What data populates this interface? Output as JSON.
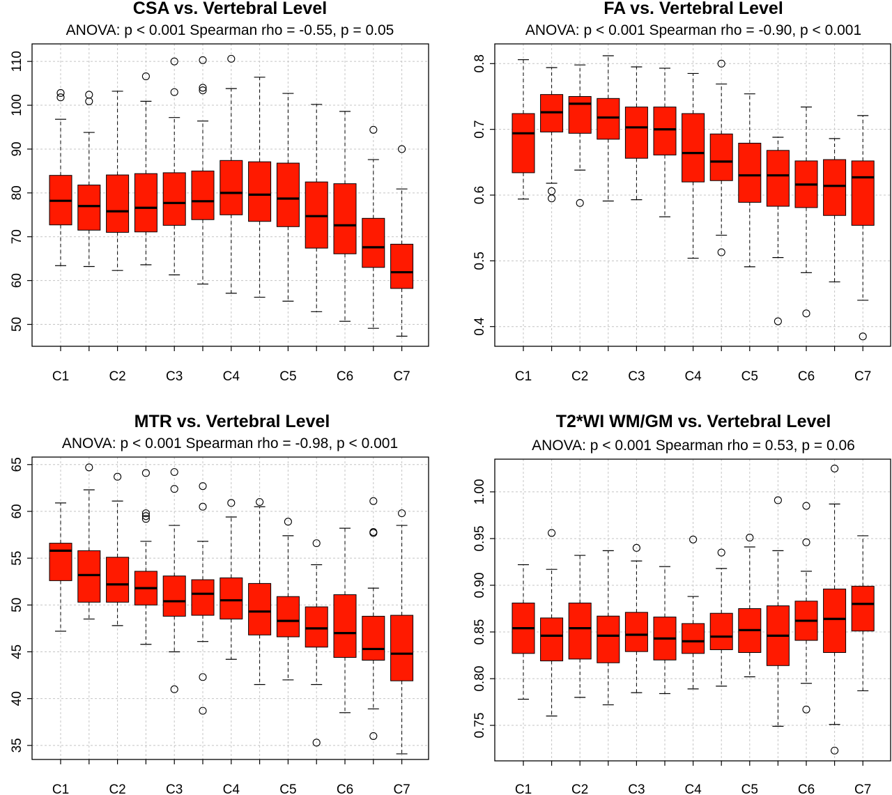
{
  "chart_data": [
    {
      "type": "box",
      "title": "CSA vs. Vertebral Level",
      "subtitle": "ANOVA: p < 0.001    Spearman rho = -0.55, p = 0.05",
      "xlabel": "",
      "ylabel": "",
      "ylim": [
        45,
        114
      ],
      "yticks": [
        50,
        60,
        70,
        80,
        90,
        100,
        110
      ],
      "ytick_labels": [
        "50",
        "60",
        "70",
        "80",
        "90",
        "100",
        "110"
      ],
      "grid": true,
      "box_color": "#ff1a00",
      "xtick_labels": [
        "C1",
        "",
        "C2",
        "",
        "C3",
        "",
        "C4",
        "",
        "C5",
        "",
        "C6",
        "",
        "C7"
      ],
      "boxes": [
        {
          "q1": 72.7,
          "median": 78.2,
          "q3": 84.0,
          "whisker_low": 63.4,
          "whisker_high": 96.8,
          "outliers": [
            101.8,
            102.8
          ]
        },
        {
          "q1": 71.5,
          "median": 77.0,
          "q3": 81.8,
          "whisker_low": 63.2,
          "whisker_high": 93.8,
          "outliers": [
            100.9,
            102.4
          ]
        },
        {
          "q1": 71.0,
          "median": 75.8,
          "q3": 84.1,
          "whisker_low": 62.3,
          "whisker_high": 103.2,
          "outliers": []
        },
        {
          "q1": 71.1,
          "median": 76.6,
          "q3": 84.4,
          "whisker_low": 63.6,
          "whisker_high": 100.9,
          "outliers": [
            106.6
          ]
        },
        {
          "q1": 72.6,
          "median": 77.7,
          "q3": 84.6,
          "whisker_low": 61.3,
          "whisker_high": 97.2,
          "outliers": [
            103.0,
            110.0
          ]
        },
        {
          "q1": 73.9,
          "median": 78.1,
          "q3": 85.0,
          "whisker_low": 59.2,
          "whisker_high": 96.4,
          "outliers": [
            103.4,
            104.0,
            110.3
          ]
        },
        {
          "q1": 75.0,
          "median": 80.0,
          "q3": 87.4,
          "whisker_low": 57.1,
          "whisker_high": 103.8,
          "outliers": [
            110.6
          ]
        },
        {
          "q1": 73.5,
          "median": 79.6,
          "q3": 87.1,
          "whisker_low": 56.2,
          "whisker_high": 106.4,
          "outliers": []
        },
        {
          "q1": 72.3,
          "median": 78.7,
          "q3": 86.8,
          "whisker_low": 55.3,
          "whisker_high": 102.7,
          "outliers": []
        },
        {
          "q1": 67.4,
          "median": 74.7,
          "q3": 82.5,
          "whisker_low": 52.9,
          "whisker_high": 100.2,
          "outliers": []
        },
        {
          "q1": 66.1,
          "median": 72.6,
          "q3": 82.1,
          "whisker_low": 50.7,
          "whisker_high": 98.6,
          "outliers": []
        },
        {
          "q1": 63.0,
          "median": 67.6,
          "q3": 74.2,
          "whisker_low": 49.1,
          "whisker_high": 87.6,
          "outliers": [
            94.4
          ]
        },
        {
          "q1": 58.2,
          "median": 61.9,
          "q3": 68.3,
          "whisker_low": 47.3,
          "whisker_high": 80.9,
          "outliers": [
            90.0
          ]
        }
      ]
    },
    {
      "type": "box",
      "title": "FA vs. Vertebral Level",
      "subtitle": "ANOVA: p < 0.001    Spearman rho = -0.90, p < 0.001",
      "xlabel": "",
      "ylabel": "",
      "ylim": [
        0.37,
        0.83
      ],
      "yticks": [
        0.4,
        0.5,
        0.6,
        0.7,
        0.8
      ],
      "ytick_labels": [
        "0.4",
        "0.5",
        "0.6",
        "0.7",
        "0.8"
      ],
      "grid": true,
      "box_color": "#ff1a00",
      "xtick_labels": [
        "C1",
        "",
        "C2",
        "",
        "C3",
        "",
        "C4",
        "",
        "C5",
        "",
        "C6",
        "",
        "C7"
      ],
      "boxes": [
        {
          "q1": 0.634,
          "median": 0.694,
          "q3": 0.724,
          "whisker_low": 0.594,
          "whisker_high": 0.806,
          "outliers": []
        },
        {
          "q1": 0.696,
          "median": 0.726,
          "q3": 0.753,
          "whisker_low": 0.618,
          "whisker_high": 0.794,
          "outliers": [
            0.595,
            0.606
          ]
        },
        {
          "q1": 0.694,
          "median": 0.739,
          "q3": 0.75,
          "whisker_low": 0.638,
          "whisker_high": 0.798,
          "outliers": [
            0.588
          ]
        },
        {
          "q1": 0.685,
          "median": 0.718,
          "q3": 0.747,
          "whisker_low": 0.591,
          "whisker_high": 0.812,
          "outliers": []
        },
        {
          "q1": 0.656,
          "median": 0.703,
          "q3": 0.734,
          "whisker_low": 0.593,
          "whisker_high": 0.795,
          "outliers": []
        },
        {
          "q1": 0.661,
          "median": 0.7,
          "q3": 0.734,
          "whisker_low": 0.567,
          "whisker_high": 0.793,
          "outliers": []
        },
        {
          "q1": 0.62,
          "median": 0.664,
          "q3": 0.724,
          "whisker_low": 0.504,
          "whisker_high": 0.785,
          "outliers": []
        },
        {
          "q1": 0.622,
          "median": 0.651,
          "q3": 0.693,
          "whisker_low": 0.539,
          "whisker_high": 0.769,
          "outliers": [
            0.513,
            0.8
          ]
        },
        {
          "q1": 0.589,
          "median": 0.63,
          "q3": 0.679,
          "whisker_low": 0.491,
          "whisker_high": 0.754,
          "outliers": []
        },
        {
          "q1": 0.583,
          "median": 0.63,
          "q3": 0.668,
          "whisker_low": 0.505,
          "whisker_high": 0.688,
          "outliers": [
            0.408
          ]
        },
        {
          "q1": 0.581,
          "median": 0.616,
          "q3": 0.652,
          "whisker_low": 0.482,
          "whisker_high": 0.734,
          "outliers": [
            0.42
          ]
        },
        {
          "q1": 0.569,
          "median": 0.614,
          "q3": 0.654,
          "whisker_low": 0.468,
          "whisker_high": 0.686,
          "outliers": []
        },
        {
          "q1": 0.554,
          "median": 0.627,
          "q3": 0.652,
          "whisker_low": 0.44,
          "whisker_high": 0.721,
          "outliers": [
            0.385
          ]
        }
      ]
    },
    {
      "type": "box",
      "title": "MTR vs. Vertebral Level",
      "subtitle": "ANOVA: p < 0.001    Spearman rho = -0.98, p < 0.001",
      "xlabel": "",
      "ylabel": "",
      "ylim": [
        33.5,
        65.8
      ],
      "yticks": [
        35,
        40,
        45,
        50,
        55,
        60,
        65
      ],
      "ytick_labels": [
        "35",
        "40",
        "45",
        "50",
        "55",
        "60",
        "65"
      ],
      "grid": true,
      "box_color": "#ff1a00",
      "xtick_labels": [
        "C1",
        "",
        "C2",
        "",
        "C3",
        "",
        "C4",
        "",
        "C5",
        "",
        "C6",
        "",
        "C7"
      ],
      "boxes": [
        {
          "q1": 52.6,
          "median": 55.8,
          "q3": 56.6,
          "whisker_low": 47.2,
          "whisker_high": 60.9,
          "outliers": []
        },
        {
          "q1": 50.3,
          "median": 53.2,
          "q3": 55.8,
          "whisker_low": 48.5,
          "whisker_high": 62.3,
          "outliers": [
            64.7
          ]
        },
        {
          "q1": 50.3,
          "median": 52.2,
          "q3": 55.1,
          "whisker_low": 47.8,
          "whisker_high": 61.1,
          "outliers": [
            63.7
          ]
        },
        {
          "q1": 50.0,
          "median": 51.8,
          "q3": 53.6,
          "whisker_low": 45.8,
          "whisker_high": 56.8,
          "outliers": [
            59.2,
            59.5,
            59.8,
            64.1
          ]
        },
        {
          "q1": 48.8,
          "median": 50.4,
          "q3": 53.1,
          "whisker_low": 45.0,
          "whisker_high": 58.5,
          "outliers": [
            41.0,
            62.4,
            64.2
          ]
        },
        {
          "q1": 48.9,
          "median": 51.2,
          "q3": 52.7,
          "whisker_low": 46.1,
          "whisker_high": 56.8,
          "outliers": [
            38.7,
            42.3,
            60.5,
            62.7
          ]
        },
        {
          "q1": 48.5,
          "median": 50.5,
          "q3": 52.9,
          "whisker_low": 44.2,
          "whisker_high": 59.4,
          "outliers": [
            60.9
          ]
        },
        {
          "q1": 46.8,
          "median": 49.3,
          "q3": 52.3,
          "whisker_low": 41.5,
          "whisker_high": 60.5,
          "outliers": [
            61.0
          ]
        },
        {
          "q1": 46.6,
          "median": 48.3,
          "q3": 50.9,
          "whisker_low": 42.0,
          "whisker_high": 57.4,
          "outliers": [
            58.9
          ]
        },
        {
          "q1": 45.5,
          "median": 47.5,
          "q3": 49.8,
          "whisker_low": 41.5,
          "whisker_high": 54.3,
          "outliers": [
            35.3,
            56.6
          ]
        },
        {
          "q1": 44.4,
          "median": 47.0,
          "q3": 51.1,
          "whisker_low": 38.5,
          "whisker_high": 58.2,
          "outliers": []
        },
        {
          "q1": 44.1,
          "median": 45.3,
          "q3": 48.8,
          "whisker_low": 38.9,
          "whisker_high": 51.8,
          "outliers": [
            36.0,
            57.7,
            57.8,
            61.1
          ]
        },
        {
          "q1": 41.9,
          "median": 44.8,
          "q3": 48.9,
          "whisker_low": 34.1,
          "whisker_high": 58.5,
          "outliers": [
            59.8
          ]
        }
      ]
    },
    {
      "type": "box",
      "title": "T2*WI  WM/GM vs. Vertebral Level",
      "subtitle": "ANOVA: p < 0.001    Spearman rho = 0.53, p = 0.06",
      "xlabel": "",
      "ylabel": "",
      "ylim": [
        0.712,
        1.035
      ],
      "yticks": [
        0.75,
        0.8,
        0.85,
        0.9,
        0.95,
        1.0
      ],
      "ytick_labels": [
        "0.75",
        "0.80",
        "0.85",
        "0.90",
        "0.95",
        "1.00"
      ],
      "grid": true,
      "box_color": "#ff1a00",
      "xtick_labels": [
        "C1",
        "",
        "C2",
        "",
        "C3",
        "",
        "C4",
        "",
        "C5",
        "",
        "C6",
        "",
        "C7"
      ],
      "boxes": [
        {
          "q1": 0.827,
          "median": 0.854,
          "q3": 0.881,
          "whisker_low": 0.778,
          "whisker_high": 0.922,
          "outliers": []
        },
        {
          "q1": 0.819,
          "median": 0.846,
          "q3": 0.865,
          "whisker_low": 0.76,
          "whisker_high": 0.917,
          "outliers": [
            0.956
          ]
        },
        {
          "q1": 0.821,
          "median": 0.854,
          "q3": 0.881,
          "whisker_low": 0.78,
          "whisker_high": 0.932,
          "outliers": []
        },
        {
          "q1": 0.817,
          "median": 0.846,
          "q3": 0.867,
          "whisker_low": 0.772,
          "whisker_high": 0.937,
          "outliers": []
        },
        {
          "q1": 0.829,
          "median": 0.847,
          "q3": 0.871,
          "whisker_low": 0.785,
          "whisker_high": 0.926,
          "outliers": [
            0.94
          ]
        },
        {
          "q1": 0.82,
          "median": 0.843,
          "q3": 0.866,
          "whisker_low": 0.784,
          "whisker_high": 0.92,
          "outliers": []
        },
        {
          "q1": 0.827,
          "median": 0.84,
          "q3": 0.859,
          "whisker_low": 0.789,
          "whisker_high": 0.888,
          "outliers": [
            0.949
          ]
        },
        {
          "q1": 0.831,
          "median": 0.845,
          "q3": 0.87,
          "whisker_low": 0.792,
          "whisker_high": 0.918,
          "outliers": [
            0.935
          ]
        },
        {
          "q1": 0.828,
          "median": 0.852,
          "q3": 0.875,
          "whisker_low": 0.802,
          "whisker_high": 0.941,
          "outliers": [
            0.951
          ]
        },
        {
          "q1": 0.814,
          "median": 0.846,
          "q3": 0.878,
          "whisker_low": 0.749,
          "whisker_high": 0.937,
          "outliers": [
            0.991
          ]
        },
        {
          "q1": 0.841,
          "median": 0.862,
          "q3": 0.883,
          "whisker_low": 0.795,
          "whisker_high": 0.915,
          "outliers": [
            0.767,
            0.946,
            0.985
          ]
        },
        {
          "q1": 0.828,
          "median": 0.864,
          "q3": 0.896,
          "whisker_low": 0.751,
          "whisker_high": 0.987,
          "outliers": [
            0.723,
            1.025
          ]
        },
        {
          "q1": 0.851,
          "median": 0.88,
          "q3": 0.899,
          "whisker_low": 0.787,
          "whisker_high": 0.953,
          "outliers": []
        }
      ]
    }
  ]
}
